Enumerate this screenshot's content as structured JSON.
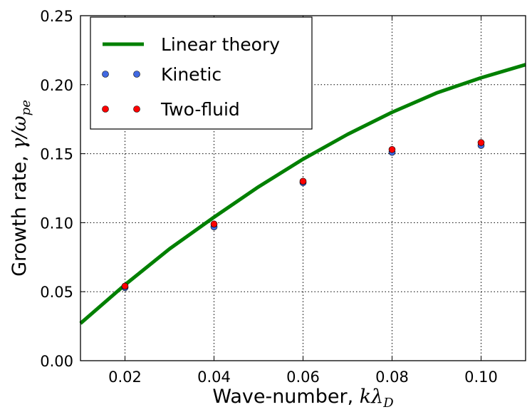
{
  "chart_data": {
    "type": "line",
    "xlabel_text": "Wave-number, ",
    "xlabel_math": "kλ",
    "xlabel_sub": "D",
    "ylabel_text": "Growth rate, ",
    "ylabel_math": "γ/ω",
    "ylabel_sub": "pe",
    "xlim": [
      0.01,
      0.11
    ],
    "ylim": [
      0.0,
      0.25
    ],
    "xticks": [
      0.02,
      0.04,
      0.06,
      0.08,
      0.1
    ],
    "xtick_labels": [
      "0.02",
      "0.04",
      "0.06",
      "0.08",
      "0.10"
    ],
    "yticks": [
      0.0,
      0.05,
      0.1,
      0.15,
      0.2,
      0.25
    ],
    "ytick_labels": [
      "0.00",
      "0.05",
      "0.10",
      "0.15",
      "0.20",
      "0.25"
    ],
    "grid": true,
    "legend_position": "top-left",
    "series": [
      {
        "name": "Linear theory",
        "kind": "line",
        "color": "#008000",
        "x": [
          0.01,
          0.02,
          0.03,
          0.04,
          0.05,
          0.06,
          0.07,
          0.08,
          0.09,
          0.1,
          0.11
        ],
        "y": [
          0.027,
          0.055,
          0.081,
          0.104,
          0.126,
          0.146,
          0.164,
          0.18,
          0.194,
          0.205,
          0.2145
        ]
      },
      {
        "name": "Kinetic",
        "kind": "scatter",
        "color": "#4169e1",
        "x": [
          0.02,
          0.04,
          0.06,
          0.08,
          0.1
        ],
        "y": [
          0.053,
          0.097,
          0.129,
          0.151,
          0.156
        ]
      },
      {
        "name": "Two-fluid",
        "kind": "scatter",
        "color": "#ff0000",
        "x": [
          0.02,
          0.04,
          0.06,
          0.08,
          0.1
        ],
        "y": [
          0.054,
          0.099,
          0.13,
          0.153,
          0.158
        ]
      }
    ]
  }
}
